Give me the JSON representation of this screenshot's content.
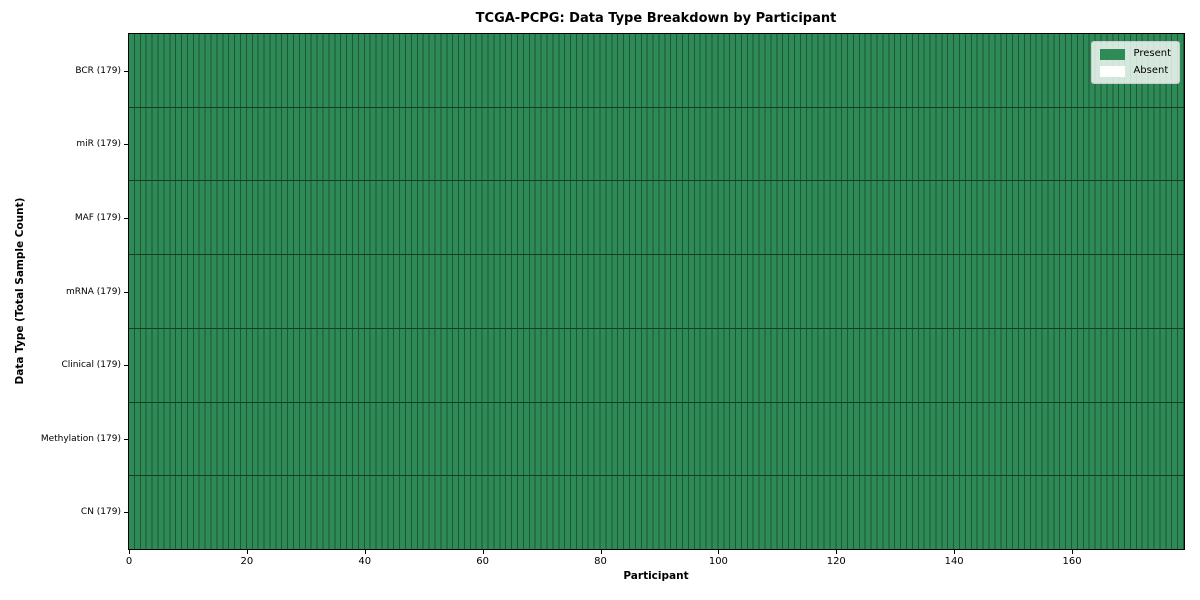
{
  "figure": {
    "title": "TCGA-PCPG: Data Type Breakdown by Participant",
    "xlabel": "Participant",
    "ylabel": "Data Type (Total Sample Count)"
  },
  "legend": {
    "position": "upper right",
    "items": [
      {
        "label": "Present",
        "color": "#2e8b57"
      },
      {
        "label": "Absent",
        "color": "#ffffff"
      }
    ]
  },
  "colors": {
    "present": "#2e8b57",
    "absent": "#ffffff",
    "cell_edge": "#1e5636",
    "row_divider": "#143d27",
    "spine": "#000000",
    "background": "#ffffff",
    "legend_background": "rgba(255,255,255,0.8)",
    "legend_border": "#cccccc"
  },
  "chart_data": {
    "type": "heatmap",
    "title": "TCGA-PCPG: Data Type Breakdown by Participant",
    "xlabel": "Participant",
    "ylabel": "Data Type (Total Sample Count)",
    "x_axis": {
      "min": 0,
      "max": 179,
      "ticks": [
        0,
        20,
        40,
        60,
        80,
        100,
        120,
        140,
        160
      ]
    },
    "participants": 179,
    "categories": [
      "BCR (179)",
      "miR (179)",
      "MAF (179)",
      "mRNA (179)",
      "Clinical (179)",
      "Methylation (179)",
      "CN (179)"
    ],
    "rows": [
      {
        "label": "BCR (179)",
        "data_type": "BCR",
        "total_samples": 179,
        "present_count": 179,
        "absent_count": 0
      },
      {
        "label": "miR (179)",
        "data_type": "miR",
        "total_samples": 179,
        "present_count": 179,
        "absent_count": 0
      },
      {
        "label": "MAF (179)",
        "data_type": "MAF",
        "total_samples": 179,
        "present_count": 179,
        "absent_count": 0
      },
      {
        "label": "mRNA (179)",
        "data_type": "mRNA",
        "total_samples": 179,
        "present_count": 179,
        "absent_count": 0
      },
      {
        "label": "Clinical (179)",
        "data_type": "Clinical",
        "total_samples": 179,
        "present_count": 179,
        "absent_count": 0
      },
      {
        "label": "Methylation (179)",
        "data_type": "Methylation",
        "total_samples": 179,
        "present_count": 179,
        "absent_count": 0
      },
      {
        "label": "CN (179)",
        "data_type": "CN",
        "total_samples": 179,
        "present_count": 179,
        "absent_count": 0
      }
    ],
    "all_cells_state": "Present",
    "legend_entries": [
      "Present",
      "Absent"
    ],
    "legend_position": "upper right",
    "grid": "cell-borders"
  }
}
